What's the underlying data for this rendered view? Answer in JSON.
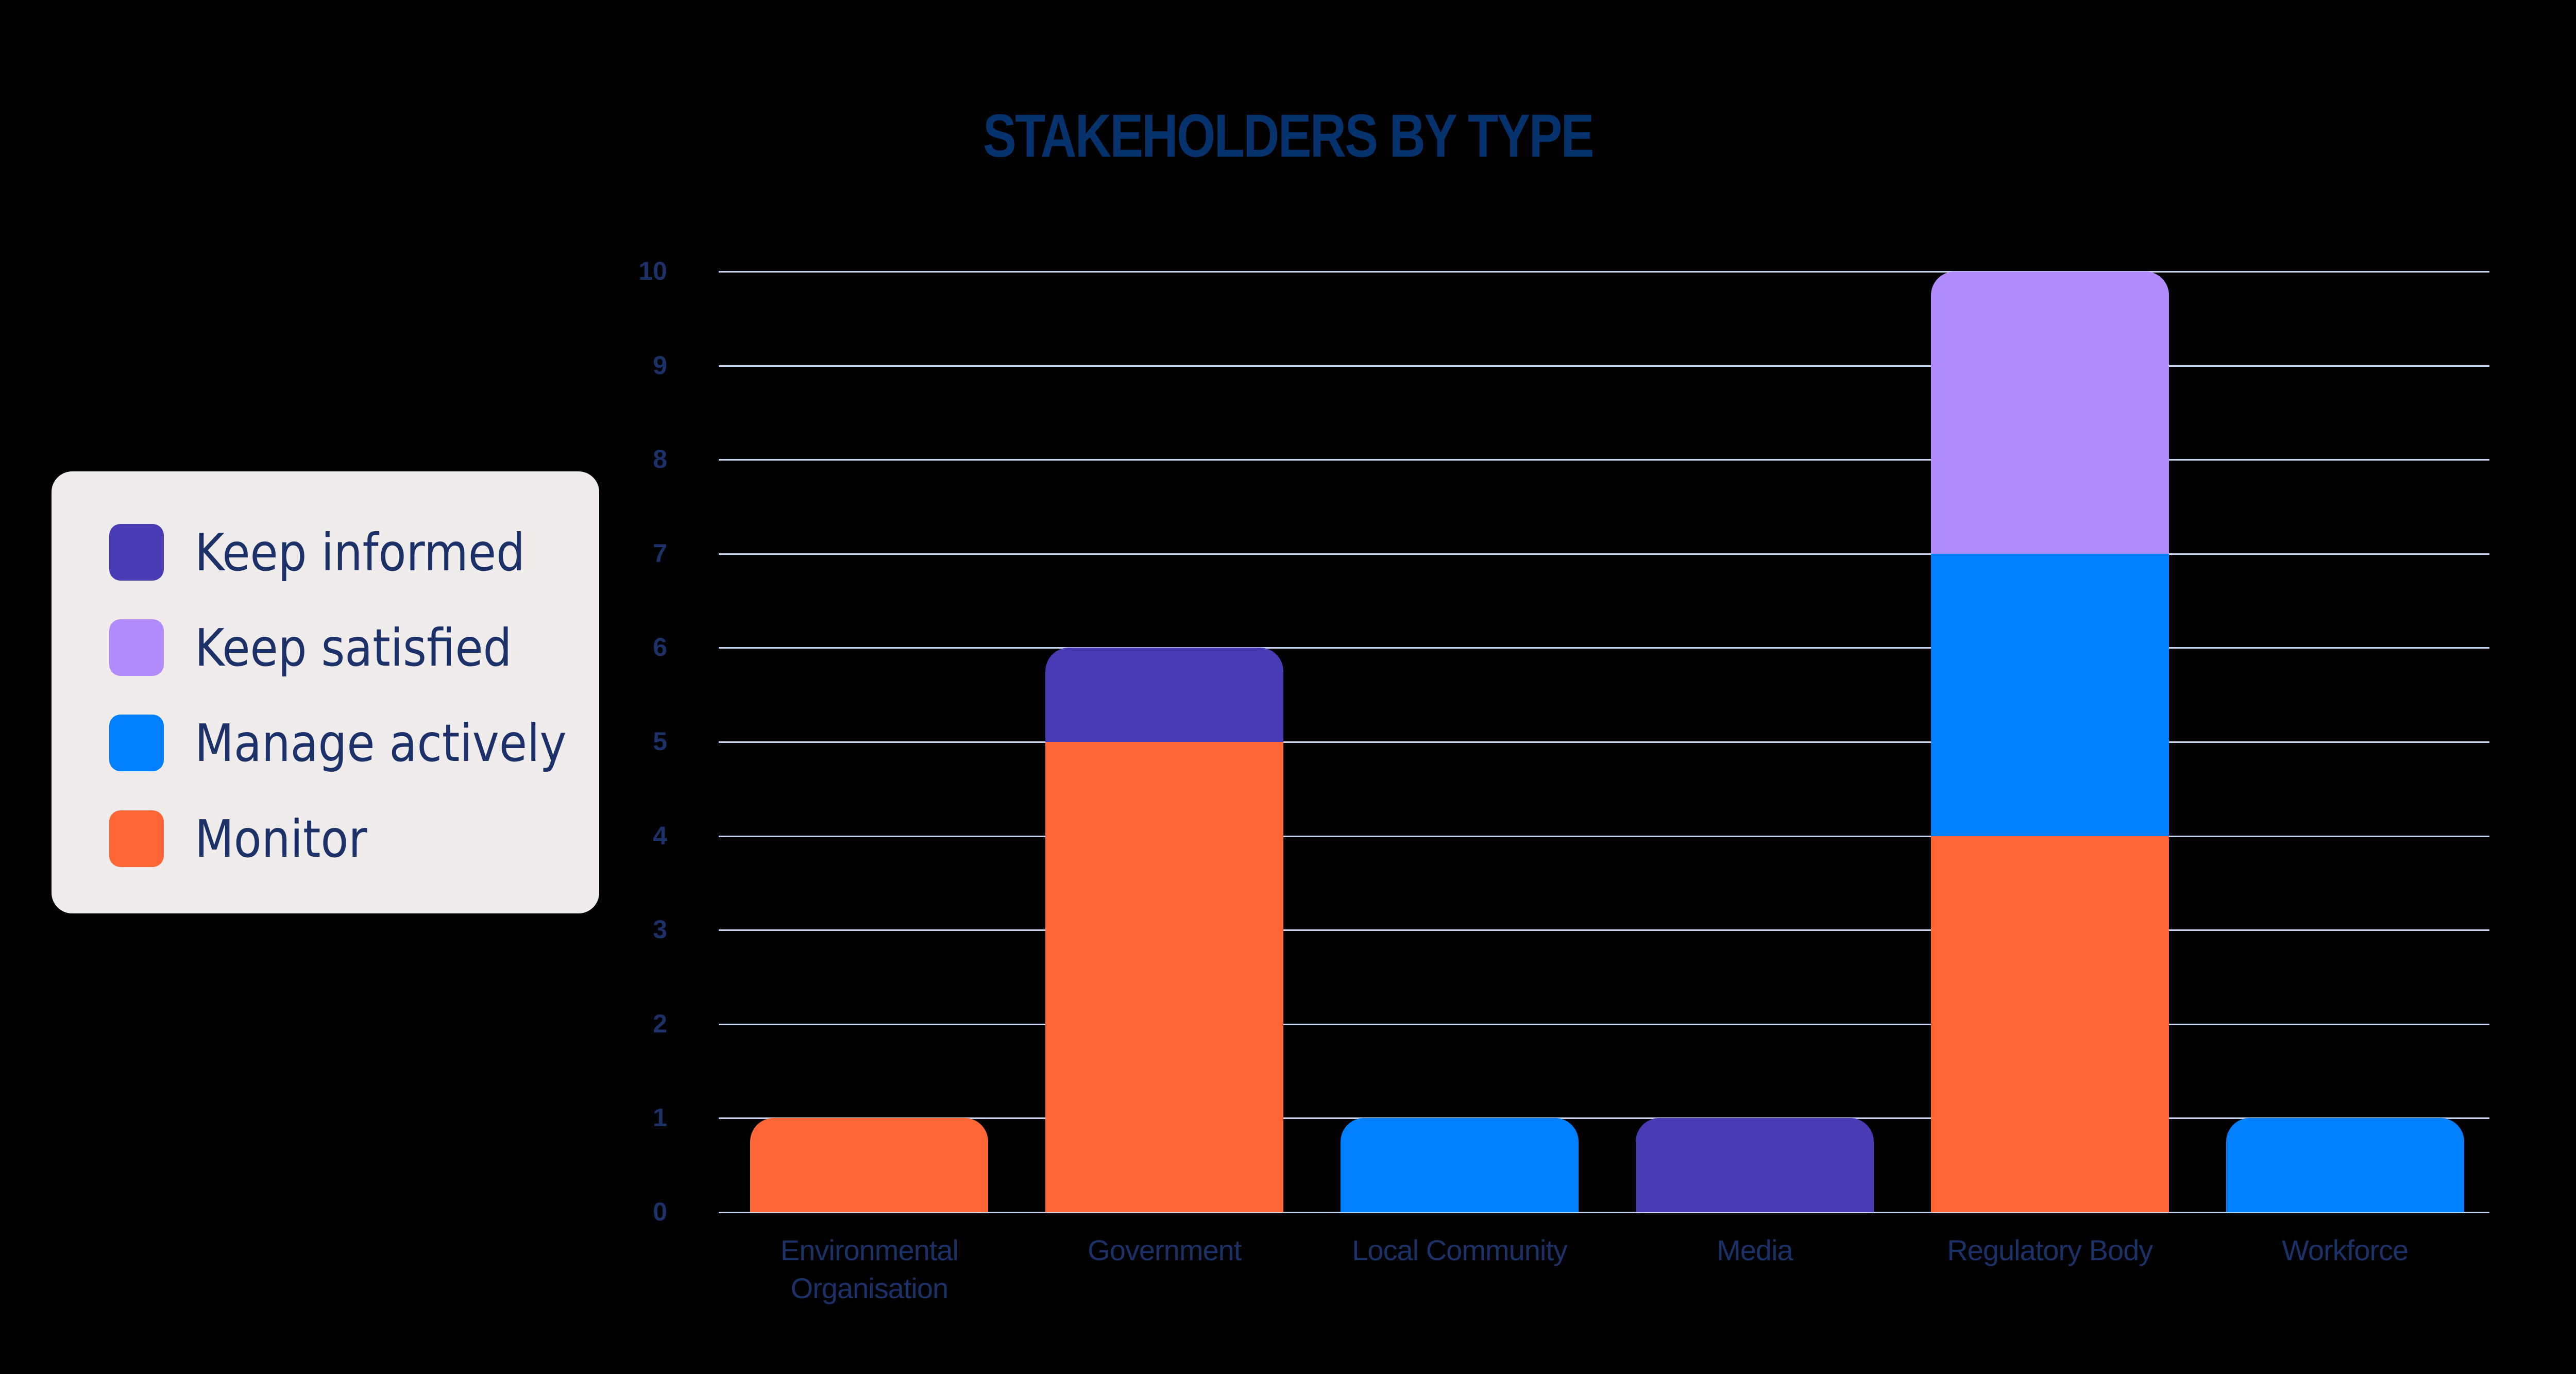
{
  "title": "STAKEHOLDERS BY TYPE",
  "colors": {
    "background": "#000000",
    "title": "#06326e",
    "text": "#1c3168",
    "gridline": "#c9d6f2",
    "legend_bg": "#f1ecec",
    "keep_informed": "#473cb4",
    "keep_satisfied": "#b18afb",
    "manage_actively": "#007fff",
    "monitor": "#ff6636"
  },
  "legend": {
    "items": [
      {
        "label": "Keep informed",
        "color": "#473cb4"
      },
      {
        "label": "Keep satisfied",
        "color": "#b18afb"
      },
      {
        "label": "Manage actively",
        "color": "#007fff"
      },
      {
        "label": "Monitor",
        "color": "#ff6636"
      }
    ]
  },
  "axis": {
    "y_ticks": [
      "0",
      "1",
      "2",
      "3",
      "4",
      "5",
      "6",
      "7",
      "8",
      "9",
      "10"
    ]
  },
  "categories_display": [
    [
      "Environmental",
      "Organisation"
    ],
    [
      "Government"
    ],
    [
      "Local Community"
    ],
    [
      "Media"
    ],
    [
      "Regulatory Body"
    ],
    [
      "Workforce"
    ]
  ],
  "chart_data": {
    "type": "bar",
    "stacked": true,
    "title": "STAKEHOLDERS BY TYPE",
    "xlabel": "",
    "ylabel": "",
    "ylim": [
      0,
      10
    ],
    "y_ticks": [
      0,
      1,
      2,
      3,
      4,
      5,
      6,
      7,
      8,
      9,
      10
    ],
    "grid": true,
    "legend_position": "left",
    "categories": [
      "Environmental Organisation",
      "Government",
      "Local Community",
      "Media",
      "Regulatory Body",
      "Workforce"
    ],
    "series": [
      {
        "name": "Monitor",
        "color": "#ff6636",
        "values": [
          1,
          5,
          0,
          0,
          4,
          0
        ]
      },
      {
        "name": "Manage actively",
        "color": "#007fff",
        "values": [
          0,
          0,
          1,
          0,
          3,
          1
        ]
      },
      {
        "name": "Keep satisfied",
        "color": "#b18afb",
        "values": [
          0,
          0,
          0,
          0,
          3,
          0
        ]
      },
      {
        "name": "Keep informed",
        "color": "#473cb4",
        "values": [
          0,
          1,
          0,
          1,
          0,
          0
        ]
      }
    ]
  }
}
